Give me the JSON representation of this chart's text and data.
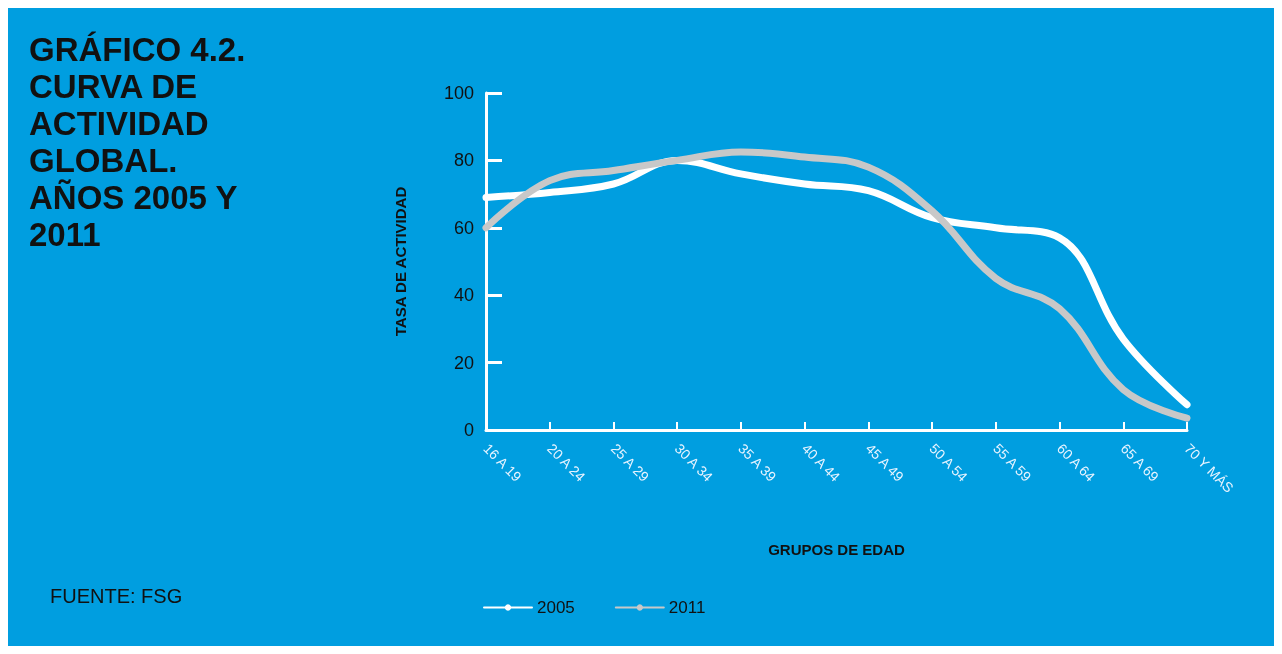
{
  "chart_data": {
    "type": "line",
    "title": "GRÁFICO 4.2. CURVA DE ACTIVIDAD GLOBAL. AÑOS 2005 Y 2011",
    "xlabel": "GRUPOS DE EDAD",
    "ylabel": "TASA DE ACTIVIDAD",
    "annotations": [
      "FUENTE: FSG"
    ],
    "categories": [
      "16 A 19",
      "20 A 24",
      "25 A 29",
      "30 A 34",
      "35 A 39",
      "40 A 44",
      "45 A 49",
      "50 A 54",
      "55 A 59",
      "60 A 64",
      "65 A 69",
      "70 Y MÁS"
    ],
    "series": [
      {
        "name": "2005",
        "color": "#ffffff",
        "values": [
          69,
          70.5,
          73,
          80,
          76,
          73,
          71,
          63,
          60,
          57,
          27,
          7.5
        ]
      },
      {
        "name": "2011",
        "color": "#c8c8c8",
        "values": [
          60,
          74,
          77,
          80,
          82.5,
          81,
          78,
          65,
          45,
          36,
          12,
          3.5
        ]
      }
    ],
    "ylim": [
      0,
      100
    ],
    "yticks": [
      0,
      20,
      40,
      60,
      80,
      100
    ],
    "grid": false,
    "legend": "bottom",
    "marker": "none",
    "line_style": "solid"
  }
}
